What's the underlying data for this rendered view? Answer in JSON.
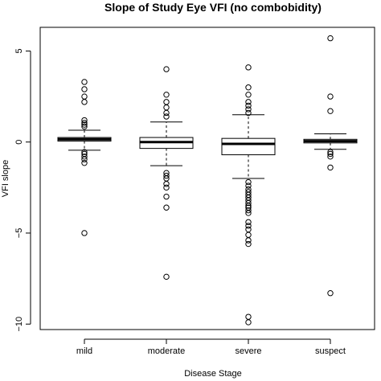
{
  "chart_data": {
    "type": "boxplot",
    "title": "Slope of Study Eye VFI (no combobidity)",
    "xlabel": "Disease Stage",
    "ylabel": "VFI slope",
    "ylim": [
      -10.3,
      6.3
    ],
    "yticks": [
      5,
      0,
      -5,
      -10
    ],
    "grid": false,
    "categories": [
      "mild",
      "moderate",
      "severe",
      "suspect"
    ],
    "boxes": [
      {
        "name": "mild",
        "q1": 0.05,
        "median": 0.15,
        "q3": 0.25,
        "whisker_low": -0.45,
        "whisker_high": 0.65,
        "outliers": [
          3.3,
          2.9,
          2.5,
          2.2,
          1.2,
          1.05,
          0.95,
          0.85,
          -0.55,
          -0.65,
          -0.8,
          -0.95,
          -1.15,
          -5.0
        ]
      },
      {
        "name": "moderate",
        "q1": -0.35,
        "median": 0.0,
        "q3": 0.25,
        "whisker_low": -1.3,
        "whisker_high": 1.1,
        "outliers": [
          4.0,
          2.6,
          2.2,
          1.9,
          1.6,
          1.4,
          -1.7,
          -1.85,
          -2.0,
          -2.3,
          -2.5,
          -3.0,
          -3.6,
          -7.4
        ]
      },
      {
        "name": "severe",
        "q1": -0.7,
        "median": -0.1,
        "q3": 0.2,
        "whisker_low": -2.0,
        "whisker_high": 1.5,
        "outliers": [
          4.1,
          3.0,
          2.6,
          2.2,
          2.0,
          1.8,
          1.6,
          -2.2,
          -2.4,
          -2.6,
          -2.75,
          -2.9,
          -3.05,
          -3.2,
          -3.35,
          -3.5,
          -3.6,
          -3.75,
          -3.9,
          -4.4,
          -4.6,
          -4.8,
          -5.1,
          -5.4,
          -5.6,
          -9.6,
          -9.9
        ]
      },
      {
        "name": "suspect",
        "q1": -0.05,
        "median": 0.05,
        "q3": 0.15,
        "whisker_low": -0.4,
        "whisker_high": 0.45,
        "outliers": [
          5.7,
          2.5,
          1.7,
          -0.55,
          -0.65,
          -0.8,
          -1.4,
          -8.3
        ]
      }
    ]
  }
}
